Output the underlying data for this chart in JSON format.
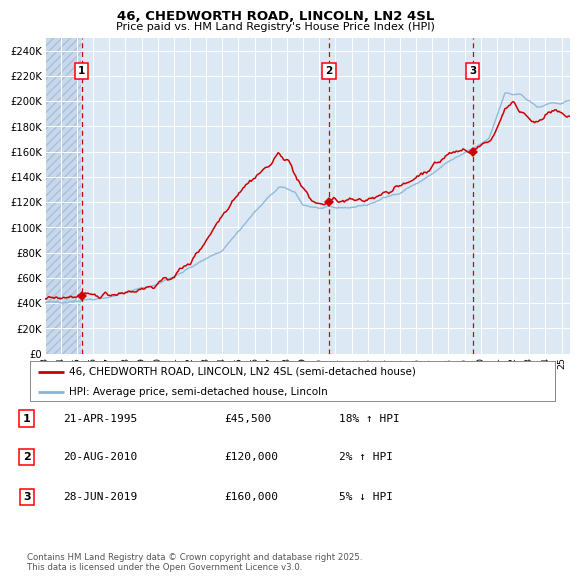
{
  "title1": "46, CHEDWORTH ROAD, LINCOLN, LN2 4SL",
  "title2": "Price paid vs. HM Land Registry's House Price Index (HPI)",
  "background_color": "#ffffff",
  "plot_bg_color": "#dce9f5",
  "grid_color": "#ffffff",
  "red_line_color": "#cc0000",
  "blue_line_color": "#8ab4d4",
  "dashed_line_color": "#cc0000",
  "marker_color": "#cc0000",
  "ylim": [
    0,
    250000
  ],
  "yticks": [
    0,
    20000,
    40000,
    60000,
    80000,
    100000,
    120000,
    140000,
    160000,
    180000,
    200000,
    220000,
    240000
  ],
  "ytick_labels": [
    "£0",
    "£20K",
    "£40K",
    "£60K",
    "£80K",
    "£100K",
    "£120K",
    "£140K",
    "£160K",
    "£180K",
    "£200K",
    "£220K",
    "£240K"
  ],
  "xmin_year": 1993.0,
  "xmax_year": 2025.5,
  "xtick_years": [
    1993,
    1994,
    1995,
    1996,
    1997,
    1998,
    1999,
    2000,
    2001,
    2002,
    2003,
    2004,
    2005,
    2006,
    2007,
    2008,
    2009,
    2010,
    2011,
    2012,
    2013,
    2014,
    2015,
    2016,
    2017,
    2018,
    2019,
    2020,
    2021,
    2022,
    2023,
    2024,
    2025
  ],
  "hatch_xmax": 1995.25,
  "sale_points": [
    {
      "year": 1995.3,
      "price": 45500,
      "label": "1"
    },
    {
      "year": 2010.6,
      "price": 120000,
      "label": "2"
    },
    {
      "year": 2019.5,
      "price": 160000,
      "label": "3"
    }
  ],
  "legend_line1": "46, CHEDWORTH ROAD, LINCOLN, LN2 4SL (semi-detached house)",
  "legend_line2": "HPI: Average price, semi-detached house, Lincoln",
  "table_rows": [
    {
      "num": "1",
      "date": "21-APR-1995",
      "price": "£45,500",
      "hpi": "18% ↑ HPI"
    },
    {
      "num": "2",
      "date": "20-AUG-2010",
      "price": "£120,000",
      "hpi": "2% ↑ HPI"
    },
    {
      "num": "3",
      "date": "28-JUN-2019",
      "price": "£160,000",
      "hpi": "5% ↓ HPI"
    }
  ],
  "footer": "Contains HM Land Registry data © Crown copyright and database right 2025.\nThis data is licensed under the Open Government Licence v3.0."
}
